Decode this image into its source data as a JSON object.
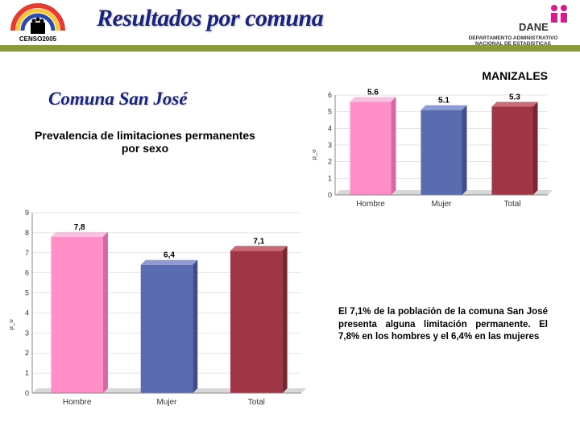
{
  "header": {
    "title": "Resultados por comuna",
    "dane_sub_line1": "DEPARTAMENTO ADMINISTRATIVO",
    "dane_sub_line2": "NACIONAL DE ESTADISTICAS",
    "censo_year": "CENSO2005",
    "dane_label": "DANE"
  },
  "city": "MANIZALES",
  "comuna_title": "Comuna San José",
  "subtitle": "Prevalencia de limitaciones permanentes por sexo",
  "chart_top": {
    "type": "bar",
    "categories": [
      "Hombre",
      "Mujer",
      "Total"
    ],
    "values": [
      5.6,
      5.1,
      5.3
    ],
    "bar_fill_main": [
      "#ff8fc6",
      "#5a6bb0",
      "#a03545"
    ],
    "bar_fill_top": [
      "#f5c2df",
      "#8d9bd6",
      "#c96a78"
    ],
    "bar_fill_side": [
      "#d56aa3",
      "#3f4d8a",
      "#7a2530"
    ],
    "ymin": 0,
    "ymax": 6,
    "ytick_step": 1,
    "bar_width": 0.58,
    "background": "#ffffff",
    "grid_color": "#cccccc",
    "axis_color": "#888888",
    "label_fontsize": 9,
    "value_fontsize": 10,
    "ylabel": "p_o"
  },
  "chart_bottom": {
    "type": "bar",
    "categories": [
      "Hombre",
      "Mujer",
      "Total"
    ],
    "values": [
      7.8,
      6.4,
      7.1
    ],
    "value_labels": [
      "7,8",
      "6,4",
      "7,1"
    ],
    "bar_fill_main": [
      "#ff8fc6",
      "#5a6bb0",
      "#a03545"
    ],
    "bar_fill_top": [
      "#f5c2df",
      "#8d9bd6",
      "#c96a78"
    ],
    "bar_fill_side": [
      "#d56aa3",
      "#3f4d8a",
      "#7a2530"
    ],
    "ymin": 0,
    "ymax": 9,
    "ytick_step": 1,
    "bar_width": 0.58,
    "background": "#ffffff",
    "grid_color": "#cccccc",
    "axis_color": "#888888",
    "label_fontsize": 10,
    "value_fontsize": 11,
    "ylabel": "p_o"
  },
  "analysis_text": "El 7,1% de la población de la comuna San José presenta alguna limitación permanente. El 7,8% en los hombres y el 6,4% en las mujeres",
  "colors": {
    "header_stripe": "#8a9b3a",
    "title_color": "#1a237e",
    "dane_magenta": "#d81b8c"
  }
}
